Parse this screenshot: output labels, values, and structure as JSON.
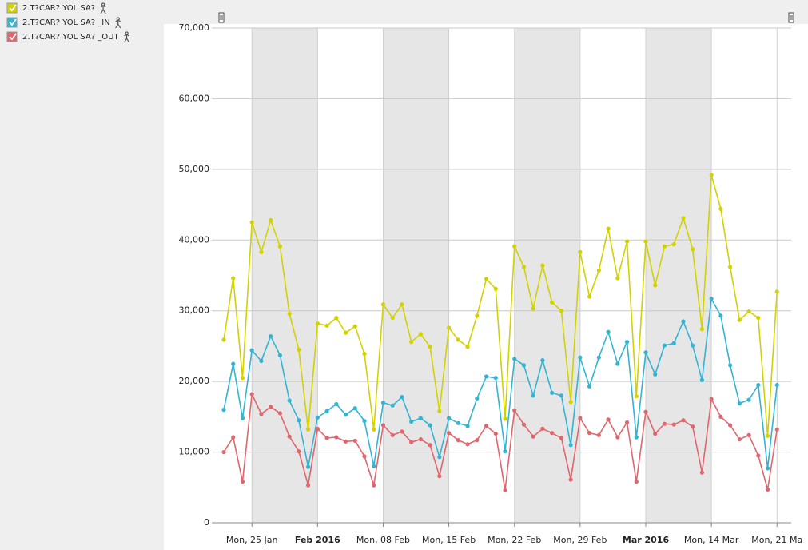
{
  "chart_data": {
    "type": "line",
    "x": [
      "2016-01-22",
      "2016-01-23",
      "2016-01-24",
      "2016-01-25",
      "2016-01-26",
      "2016-01-27",
      "2016-01-28",
      "2016-01-29",
      "2016-01-30",
      "2016-01-31",
      "2016-02-01",
      "2016-02-02",
      "2016-02-03",
      "2016-02-04",
      "2016-02-05",
      "2016-02-06",
      "2016-02-07",
      "2016-02-08",
      "2016-02-09",
      "2016-02-10",
      "2016-02-11",
      "2016-02-12",
      "2016-02-13",
      "2016-02-14",
      "2016-02-15",
      "2016-02-16",
      "2016-02-17",
      "2016-02-18",
      "2016-02-19",
      "2016-02-20",
      "2016-02-21",
      "2016-02-22",
      "2016-02-23",
      "2016-02-24",
      "2016-02-25",
      "2016-02-26",
      "2016-02-27",
      "2016-02-28",
      "2016-02-29",
      "2016-03-01",
      "2016-03-02",
      "2016-03-03",
      "2016-03-04",
      "2016-03-05",
      "2016-03-06",
      "2016-03-07",
      "2016-03-08",
      "2016-03-09",
      "2016-03-10",
      "2016-03-11",
      "2016-03-12",
      "2016-03-13",
      "2016-03-14",
      "2016-03-15",
      "2016-03-16",
      "2016-03-17",
      "2016-03-18",
      "2016-03-19",
      "2016-03-20",
      "2016-03-21"
    ],
    "series": [
      {
        "name": "2.T?CAR? YOL SA?",
        "color": "#d2d200",
        "values": [
          25900,
          34600,
          20500,
          42500,
          38300,
          42800,
          39100,
          29600,
          24500,
          13200,
          28200,
          27900,
          29000,
          26900,
          27800,
          23900,
          13200,
          30900,
          29000,
          30900,
          25600,
          26700,
          24900,
          15800,
          27600,
          25900,
          24900,
          29300,
          34500,
          33100,
          14700,
          39100,
          36200,
          30300,
          36400,
          31200,
          30000,
          17100,
          38300,
          32000,
          35700,
          41600,
          34600,
          39800,
          17900,
          39800,
          33600,
          39100,
          39400,
          43100,
          38700,
          27400,
          49200,
          44400,
          36200,
          28700,
          29900,
          29000,
          12300,
          32700
        ]
      },
      {
        "name": "2.T?CAR? YOL SA? _IN",
        "color": "#33b4d2",
        "values": [
          16000,
          22500,
          14800,
          24400,
          22900,
          26400,
          23700,
          17300,
          14500,
          7900,
          14900,
          15800,
          16800,
          15300,
          16200,
          14400,
          8000,
          17000,
          16600,
          17800,
          14300,
          14800,
          13800,
          9300,
          14800,
          14100,
          13700,
          17600,
          20700,
          20500,
          10100,
          23200,
          22300,
          18000,
          23000,
          18400,
          18000,
          11000,
          23400,
          19300,
          23400,
          27000,
          22500,
          25600,
          12100,
          24100,
          21000,
          25100,
          25400,
          28500,
          25100,
          20200,
          31700,
          29300,
          22300,
          16900,
          17400,
          19500,
          7700,
          19500
        ]
      },
      {
        "name": "2.T?CAR? YOL SA? _OUT",
        "color": "#e0666e",
        "values": [
          10000,
          12100,
          5800,
          18200,
          15400,
          16400,
          15500,
          12200,
          10100,
          5300,
          13300,
          12000,
          12100,
          11500,
          11600,
          9400,
          5300,
          13800,
          12400,
          12900,
          11400,
          11800,
          11000,
          6600,
          12700,
          11700,
          11100,
          11700,
          13700,
          12600,
          4600,
          15900,
          13900,
          12200,
          13300,
          12700,
          12000,
          6100,
          14800,
          12700,
          12400,
          14600,
          12100,
          14200,
          5800,
          15700,
          12600,
          14000,
          13900,
          14500,
          13600,
          7100,
          17500,
          15000,
          13800,
          11800,
          12400,
          9500,
          4700,
          13200
        ]
      }
    ],
    "xlim": [
      "2016-01-22",
      "2016-03-22"
    ],
    "xticks": [
      {
        "value": "2016-01-25",
        "label": "Mon, 25 Jan"
      },
      {
        "value": "2016-02-01",
        "label": "Feb 2016"
      },
      {
        "value": "2016-02-08",
        "label": "Mon, 08 Feb"
      },
      {
        "value": "2016-02-15",
        "label": "Mon, 15 Feb"
      },
      {
        "value": "2016-02-22",
        "label": "Mon, 22 Feb"
      },
      {
        "value": "2016-02-29",
        "label": "Mon, 29 Feb"
      },
      {
        "value": "2016-03-07",
        "label": "Mar 2016"
      },
      {
        "value": "2016-03-14",
        "label": "Mon, 14 Mar"
      },
      {
        "value": "2016-03-21",
        "label": "Mon, 21 Ma"
      }
    ],
    "ylim": [
      0,
      70000
    ],
    "yticks": [
      0,
      {
        "value": 10000,
        "label": "10,000"
      },
      {
        "value": 20000,
        "label": "20,000"
      },
      {
        "value": 30000,
        "label": "30,000"
      },
      {
        "value": 40000,
        "label": "40,000"
      },
      {
        "value": 50000,
        "label": "50,000"
      },
      {
        "value": 60000,
        "label": "60,000"
      },
      {
        "value": 70000,
        "label": "70,000"
      }
    ],
    "grid": true
  }
}
